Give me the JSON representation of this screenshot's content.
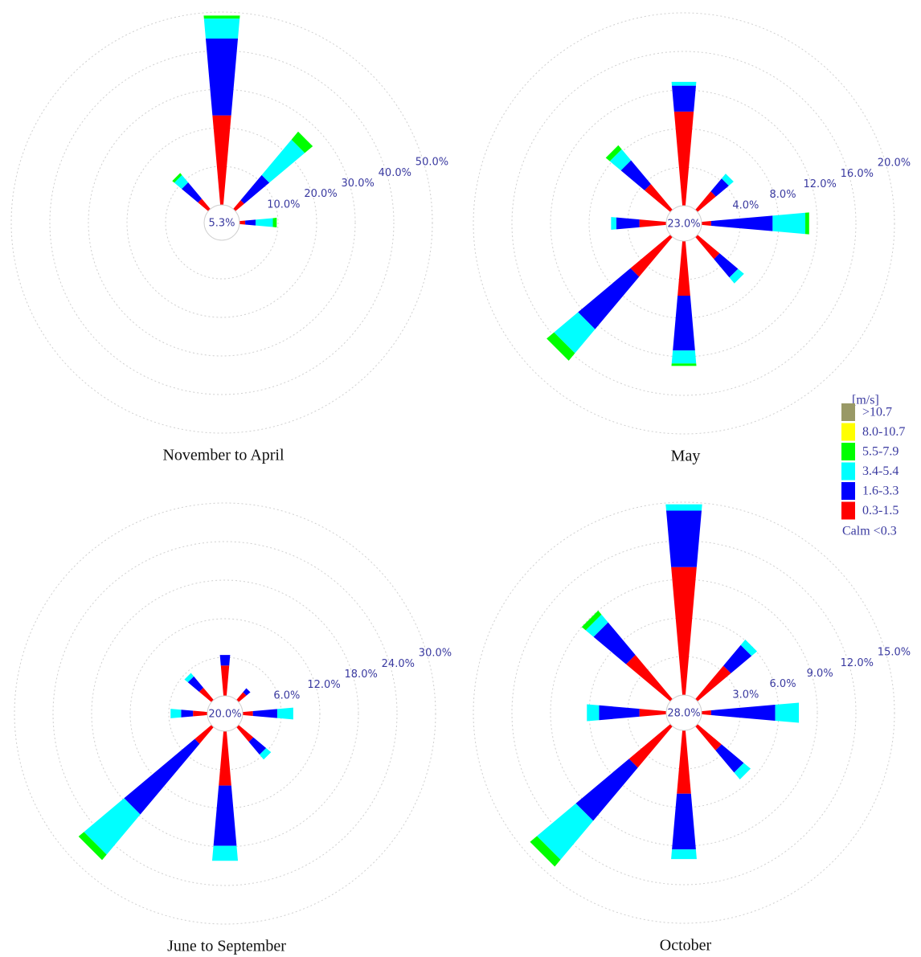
{
  "legend": {
    "title": "[m/s]",
    "calm": "Calm <0.3",
    "position": "right",
    "items": [
      {
        "name": "0.3-1.5",
        "color": "#ff0000"
      },
      {
        "name": "1.6-3.3",
        "color": "#0000ff"
      },
      {
        "name": "3.4-5.4",
        "color": "#00ffff"
      },
      {
        "name": "5.5-7.9",
        "color": "#00ff00"
      },
      {
        "name": "8.0-10.7",
        "color": "#ffff00"
      },
      {
        "name": ">10.7",
        "color": "#999966"
      }
    ]
  },
  "chart_data": [
    {
      "type": "windrose",
      "title": "November to April",
      "x": [
        0,
        45,
        90,
        135,
        180,
        225,
        270,
        315
      ],
      "calm": 5.3,
      "calm_label": "5.3%",
      "rlim": [
        0,
        50
      ],
      "rticks": [
        {
          "value": 10,
          "label": "10.0%"
        },
        {
          "value": 20,
          "label": "20.0%"
        },
        {
          "value": 30,
          "label": "30.0%"
        },
        {
          "value": 40,
          "label": "40.0%"
        },
        {
          "value": 50,
          "label": "50.0%"
        }
      ],
      "series": [
        {
          "values": [
            23.3,
            3,
            1.5,
            0,
            0,
            0,
            0,
            3.5
          ]
        },
        {
          "values": [
            20,
            8.5,
            2.7,
            0,
            0,
            0,
            0,
            5.5
          ]
        },
        {
          "values": [
            5.2,
            12,
            4.5,
            0,
            0,
            0,
            0,
            2.5
          ]
        },
        {
          "values": [
            0.8,
            2.7,
            1,
            0,
            0,
            0,
            0,
            0.7
          ]
        },
        {
          "values": [
            0,
            0,
            0,
            0,
            0,
            0,
            0,
            0
          ]
        },
        {
          "values": [
            0,
            0,
            0,
            0,
            0,
            0,
            0,
            0
          ]
        }
      ]
    },
    {
      "type": "windrose",
      "title": "May",
      "x": [
        0,
        45,
        90,
        135,
        180,
        225,
        270,
        315
      ],
      "calm": 23,
      "calm_label": "23.0%",
      "rlim": [
        0,
        20
      ],
      "rticks": [
        {
          "value": 4,
          "label": "4.0%"
        },
        {
          "value": 8,
          "label": "8.0%"
        },
        {
          "value": 12,
          "label": "12.0%"
        },
        {
          "value": 16,
          "label": "16.0%"
        },
        {
          "value": 20,
          "label": "20.0%"
        }
      ],
      "series": [
        {
          "values": [
            9.8,
            2.5,
            1,
            3,
            5.7,
            5.4,
            2.8,
            3.5
          ]
        },
        {
          "values": [
            2.7,
            1.75,
            6.4,
            2.5,
            5.7,
            7.1,
            2.4,
            3.2
          ]
        },
        {
          "values": [
            0.4,
            0.65,
            3.4,
            0.8,
            1.35,
            3.25,
            0.55,
            1.5
          ]
        },
        {
          "values": [
            0,
            0,
            0.4,
            0,
            0.25,
            1,
            0,
            0.55
          ]
        },
        {
          "values": [
            0,
            0,
            0,
            0,
            0,
            0,
            0,
            0
          ]
        },
        {
          "values": [
            0,
            0,
            0,
            0,
            0,
            0,
            0,
            0
          ]
        }
      ]
    },
    {
      "type": "windrose",
      "title": "June to September",
      "x": [
        0,
        45,
        90,
        135,
        180,
        225,
        270,
        315
      ],
      "calm": 20,
      "calm_label": "20.0%",
      "rlim": [
        0,
        30
      ],
      "rticks": [
        {
          "value": 6,
          "label": "6.0%"
        },
        {
          "value": 12,
          "label": "12.0%"
        },
        {
          "value": 18,
          "label": "18.0%"
        },
        {
          "value": 24,
          "label": "24.0%"
        },
        {
          "value": 30,
          "label": "30.0%"
        }
      ],
      "series": [
        {
          "values": [
            4.75,
            1.6,
            1.6,
            3,
            8.5,
            3.4,
            2.25,
            2.5
          ]
        },
        {
          "values": [
            1.65,
            0.8,
            3.8,
            2.6,
            9.4,
            14.35,
            1.85,
            2.3
          ]
        },
        {
          "values": [
            0,
            0,
            2.5,
            1,
            2.35,
            8.15,
            1.65,
            0.7
          ]
        },
        {
          "values": [
            0,
            0,
            0,
            0,
            0,
            1.1,
            0,
            0
          ]
        },
        {
          "values": [
            0,
            0,
            0,
            0,
            0,
            0,
            0,
            0
          ]
        },
        {
          "values": [
            0,
            0,
            0,
            0,
            0,
            0,
            0,
            0
          ]
        }
      ]
    },
    {
      "type": "windrose",
      "title": "October",
      "x": [
        0,
        45,
        90,
        135,
        180,
        225,
        270,
        315
      ],
      "calm": 28,
      "calm_label": "28.0%",
      "rlim": [
        0,
        15
      ],
      "rticks": [
        {
          "value": 3,
          "label": "3.0%"
        },
        {
          "value": 6,
          "label": "6.0%"
        },
        {
          "value": 9,
          "label": "9.0%"
        },
        {
          "value": 12,
          "label": "12.0%"
        },
        {
          "value": 15,
          "label": "15.0%"
        }
      ],
      "series": [
        {
          "values": [
            10,
            3.4,
            0.75,
            2.45,
            4.95,
            4.2,
            2.1,
            4.5
          ]
        },
        {
          "values": [
            4.4,
            2.1,
            5,
            2.25,
            4.35,
            5.4,
            3.15,
            3.3
          ]
        },
        {
          "values": [
            0.5,
            0.55,
            1.85,
            0.7,
            0.75,
            3.95,
            0.95,
            0.8
          ]
        },
        {
          "values": [
            0,
            0,
            0,
            0,
            0,
            0.7,
            0,
            0.4
          ]
        },
        {
          "values": [
            0,
            0,
            0,
            0,
            0,
            0,
            0,
            0
          ]
        },
        {
          "values": [
            0,
            0,
            0,
            0,
            0,
            0,
            0,
            0
          ]
        }
      ]
    }
  ]
}
